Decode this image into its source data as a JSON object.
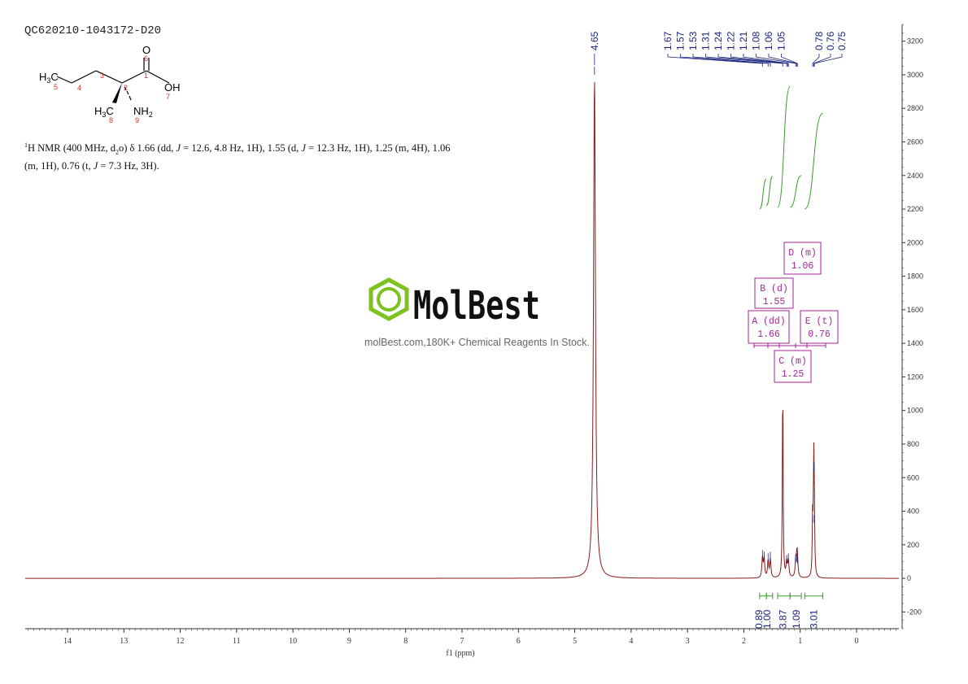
{
  "sample_id": "QC620210-1043172-D20",
  "structure": {
    "h3c": "H3C",
    "oh": "OH",
    "o": "O",
    "nh2": "NH2",
    "h3c_methyl": "H3C",
    "atom_numbers": [
      "5",
      "4",
      "3",
      "2",
      "1",
      "6",
      "7",
      "8",
      "9"
    ]
  },
  "nmr_text": {
    "line1_a": "H NMR (400 MHz, d",
    "line1_sup": "1",
    "line1_sub": "2",
    "line1_b": "o) δ 1.66 (dd, ",
    "J": "J",
    "line1_c": " = 12.6, 4.8 Hz, 1H), 1.55 (d, ",
    "line1_d": " = 12.3 Hz, 1H), 1.25 (m, 4H), 1.06",
    "line2_a": "(m, 1H), 0.76 (t, ",
    "line2_b": " = 7.3 Hz, 3H)."
  },
  "watermark": {
    "logo_text": "MolBest",
    "tagline": "molBest.com,180K+ Chemical Reagents In Stock."
  },
  "colors": {
    "spectrum": "#8b1a1a",
    "integral": "#3a9b2a",
    "peak_label": "#1a237e",
    "multiplet_box": "#a3269a",
    "logo_green": "#7dc21e"
  },
  "chart_data": {
    "type": "line",
    "xlabel": "f1 (ppm)",
    "xlim": [
      14.75,
      -0.75
    ],
    "ylim": [
      -300,
      3300
    ],
    "x_ticks": [
      14,
      13,
      12,
      11,
      10,
      9,
      8,
      7,
      6,
      5,
      4,
      3,
      2,
      1,
      0
    ],
    "y_ticks": [
      -200,
      0,
      200,
      400,
      600,
      800,
      1000,
      1200,
      1400,
      1600,
      1800,
      2000,
      2200,
      2400,
      2600,
      2800,
      3000,
      3200
    ],
    "peaks": [
      {
        "ppm": 4.65,
        "height": 3000,
        "width": 0.02
      },
      {
        "ppm": 1.67,
        "height": 120,
        "width": 0.012
      },
      {
        "ppm": 1.64,
        "height": 110,
        "width": 0.012
      },
      {
        "ppm": 1.57,
        "height": 100,
        "width": 0.012
      },
      {
        "ppm": 1.53,
        "height": 110,
        "width": 0.012
      },
      {
        "ppm": 1.31,
        "height": 1180,
        "width": 0.008
      },
      {
        "ppm": 1.24,
        "height": 90,
        "width": 0.012
      },
      {
        "ppm": 1.21,
        "height": 100,
        "width": 0.012
      },
      {
        "ppm": 1.08,
        "height": 95,
        "width": 0.012
      },
      {
        "ppm": 1.06,
        "height": 100,
        "width": 0.012
      },
      {
        "ppm": 1.05,
        "height": 90,
        "width": 0.012
      },
      {
        "ppm": 0.78,
        "height": 330,
        "width": 0.008
      },
      {
        "ppm": 0.76,
        "height": 640,
        "width": 0.008
      },
      {
        "ppm": 0.75,
        "height": 330,
        "width": 0.008
      }
    ],
    "peak_labels_left": [
      "4.65"
    ],
    "peak_labels_group1": [
      "1.67",
      "1.57",
      "1.53",
      "1.31",
      "1.24",
      "1.22",
      "1.21",
      "1.08",
      "1.06",
      "1.05"
    ],
    "peak_labels_group2": [
      "0.78",
      "0.76",
      "0.75"
    ],
    "integrals": [
      {
        "from": 1.72,
        "to": 1.6,
        "value": "0.89"
      },
      {
        "from": 1.6,
        "to": 1.49,
        "value": "1.00"
      },
      {
        "from": 1.4,
        "to": 1.18,
        "value": "3.87"
      },
      {
        "from": 1.18,
        "to": 0.98,
        "value": "1.09"
      },
      {
        "from": 0.92,
        "to": 0.6,
        "value": "3.01"
      }
    ],
    "multiplets": [
      {
        "name": "A (dd)",
        "value": "1.66"
      },
      {
        "name": "B (d)",
        "value": "1.55"
      },
      {
        "name": "C (m)",
        "value": "1.25"
      },
      {
        "name": "D (m)",
        "value": "1.06"
      },
      {
        "name": "E (t)",
        "value": "0.76"
      }
    ]
  }
}
